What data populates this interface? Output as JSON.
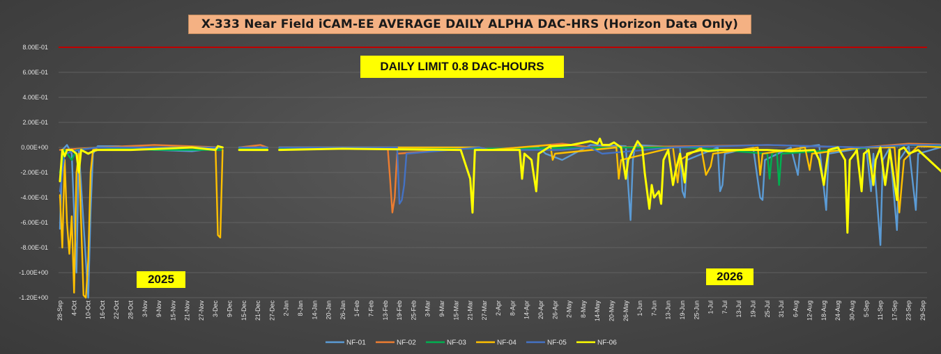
{
  "chart_data": {
    "type": "line",
    "title": "X-333 Near Field iCAM-EE AVERAGE DAILY ALPHA DAC-HRS (Horizon Data Only)",
    "xlabel": "",
    "ylabel": "",
    "ylim": [
      -1.2,
      0.8
    ],
    "yticks": [
      "8.00E-01",
      "6.00E-01",
      "4.00E-01",
      "2.00E-01",
      "0.00E+00",
      "-2.00E-01",
      "-4.00E-01",
      "-6.00E-01",
      "-8.00E-01",
      "-1.00E+00",
      "-1.20E+00"
    ],
    "ytick_values": [
      0.8,
      0.6,
      0.4,
      0.2,
      0.0,
      -0.2,
      -0.4,
      -0.6,
      -0.8,
      -1.0,
      -1.2
    ],
    "x_tick_labels": [
      "28-Sep",
      "4-Oct",
      "10-Oct",
      "16-Oct",
      "22-Oct",
      "28-Oct",
      "3-Nov",
      "9-Nov",
      "15-Nov",
      "21-Nov",
      "27-Nov",
      "3-Dec",
      "9-Dec",
      "15-Dec",
      "21-Dec",
      "27-Dec",
      "2-Jan",
      "8-Jan",
      "14-Jan",
      "20-Jan",
      "26-Jan",
      "1-Feb",
      "7-Feb",
      "13-Feb",
      "19-Feb",
      "25-Feb",
      "3-Mar",
      "9-Mar",
      "15-Mar",
      "21-Mar",
      "27-Mar",
      "2-Apr",
      "8-Apr",
      "14-Apr",
      "20-Apr",
      "26-Apr",
      "2-May",
      "8-May",
      "14-May",
      "20-May",
      "26-May",
      "1-Jun",
      "7-Jun",
      "13-Jun",
      "19-Jun",
      "25-Jun",
      "1-Jul",
      "7-Jul",
      "13-Jul",
      "19-Jul",
      "25-Jul",
      "31-Jul",
      "6-Aug",
      "12-Aug",
      "18-Aug",
      "24-Aug",
      "30-Aug",
      "5-Sep",
      "11-Sep",
      "17-Sep",
      "23-Sep",
      "29-Sep"
    ],
    "limit_line": {
      "value": 0.8,
      "color": "#c00000"
    },
    "legend_position": "bottom",
    "grid": "horizontal",
    "annotations": {
      "limit_note": "DAILY LIMIT 0.8 DAC-HOURS",
      "year_left": "2025",
      "year_right": "2026"
    },
    "series": [
      {
        "name": "NF-01",
        "color": "#5b9bd5",
        "points": [
          [
            0,
            -0.65
          ],
          [
            1,
            -0.02
          ],
          [
            3,
            0.02
          ],
          [
            5,
            -0.05
          ],
          [
            7,
            -1.0
          ],
          [
            8,
            -0.02
          ],
          [
            12,
            -1.2
          ],
          [
            13,
            -0.5
          ],
          [
            14,
            -0.05
          ],
          [
            16,
            0.01
          ],
          [
            25,
            0.01
          ],
          [
            40,
            -0.02
          ],
          [
            56,
            -0.03
          ],
          [
            69,
            0.0
          ],
          [
            70,
            null
          ],
          [
            76,
            0.0
          ],
          [
            88,
            0.0
          ],
          [
            89,
            null
          ],
          [
            93,
            0.0
          ],
          [
            130,
            0.0
          ],
          [
            162,
            0.0
          ],
          [
            178,
            0.0
          ],
          [
            182,
            -0.02
          ],
          [
            203,
            0.0
          ],
          [
            206,
            -0.05
          ],
          [
            213,
            -0.1
          ],
          [
            225,
            0.02
          ],
          [
            240,
            0.01
          ],
          [
            241,
            -0.3
          ],
          [
            242,
            -0.58
          ],
          [
            243,
            -0.1
          ],
          [
            244,
            0.02
          ],
          [
            263,
            0.0
          ],
          [
            264,
            -0.35
          ],
          [
            265,
            -0.4
          ],
          [
            266,
            -0.1
          ],
          [
            279,
            0.0
          ],
          [
            280,
            -0.35
          ],
          [
            281,
            -0.3
          ],
          [
            282,
            -0.05
          ],
          [
            294,
            0.0
          ],
          [
            297,
            -0.4
          ],
          [
            298,
            -0.42
          ],
          [
            299,
            -0.1
          ],
          [
            310,
            0.0
          ],
          [
            313,
            -0.22
          ],
          [
            314,
            0.0
          ],
          [
            322,
            0.02
          ],
          [
            325,
            -0.5
          ],
          [
            326,
            -0.05
          ],
          [
            342,
            0.0
          ],
          [
            344,
            -0.35
          ],
          [
            345,
            -0.05
          ],
          [
            348,
            -0.78
          ],
          [
            349,
            -0.1
          ],
          [
            352,
            0.0
          ],
          [
            355,
            -0.66
          ],
          [
            356,
            -0.1
          ],
          [
            360,
            0.01
          ],
          [
            363,
            -0.5
          ],
          [
            364,
            -0.05
          ],
          [
            377,
            0.02
          ],
          [
            378,
            -0.1
          ],
          [
            379,
            -0.98
          ],
          [
            380,
            -0.05
          ],
          [
            383,
            0.0
          ],
          [
            385,
            0.02
          ]
        ]
      },
      {
        "name": "NF-02",
        "color": "#ed7d31",
        "points": [
          [
            0,
            -0.02
          ],
          [
            16,
            0.0
          ],
          [
            40,
            0.02
          ],
          [
            69,
            0.0
          ],
          [
            70,
            null
          ],
          [
            76,
            0.0
          ],
          [
            85,
            0.02
          ],
          [
            88,
            0.0
          ],
          [
            89,
            null
          ],
          [
            93,
            0.0
          ],
          [
            139,
            0.0
          ],
          [
            140,
            -0.25
          ],
          [
            141,
            -0.52
          ],
          [
            142,
            -0.4
          ],
          [
            143,
            -0.05
          ],
          [
            178,
            0.0
          ],
          [
            182,
            -0.02
          ],
          [
            213,
            0.03
          ],
          [
            225,
            0.0
          ],
          [
            270,
            0.01
          ],
          [
            300,
            0.02
          ],
          [
            340,
            0.0
          ],
          [
            360,
            0.03
          ],
          [
            383,
            0.02
          ],
          [
            385,
            0.0
          ]
        ]
      },
      {
        "name": "NF-03",
        "color": "#00b050",
        "points": [
          [
            0,
            -0.2
          ],
          [
            2,
            -0.02
          ],
          [
            5,
            -0.1
          ],
          [
            7,
            -0.02
          ],
          [
            16,
            0.0
          ],
          [
            40,
            -0.02
          ],
          [
            69,
            -0.02
          ],
          [
            70,
            null
          ],
          [
            76,
            -0.01
          ],
          [
            88,
            -0.01
          ],
          [
            89,
            null
          ],
          [
            93,
            -0.01
          ],
          [
            178,
            -0.01
          ],
          [
            240,
            0.0
          ],
          [
            266,
            0.0
          ],
          [
            300,
            -0.05
          ],
          [
            301,
            -0.25
          ],
          [
            302,
            -0.05
          ],
          [
            304,
            -0.02
          ],
          [
            305,
            -0.3
          ],
          [
            306,
            -0.05
          ],
          [
            330,
            -0.02
          ],
          [
            360,
            0.02
          ],
          [
            383,
            0.0
          ],
          [
            385,
            0.01
          ]
        ]
      },
      {
        "name": "NF-04",
        "color": "#ffc000",
        "points": [
          [
            0,
            -0.38
          ],
          [
            1,
            -0.8
          ],
          [
            2,
            -0.1
          ],
          [
            3,
            -0.6
          ],
          [
            4,
            -0.85
          ],
          [
            5,
            -0.55
          ],
          [
            6,
            -1.16
          ],
          [
            7,
            -0.2
          ],
          [
            8,
            -0.05
          ],
          [
            9,
            -0.6
          ],
          [
            10,
            -1.18
          ],
          [
            11,
            -1.2
          ],
          [
            12,
            -0.9
          ],
          [
            13,
            -0.2
          ],
          [
            14,
            -0.02
          ],
          [
            16,
            0.0
          ],
          [
            30,
            0.0
          ],
          [
            56,
            0.0
          ],
          [
            66,
            0.0
          ],
          [
            67,
            -0.7
          ],
          [
            68,
            -0.72
          ],
          [
            69,
            -0.02
          ],
          [
            70,
            null
          ],
          [
            76,
            0.0
          ],
          [
            88,
            0.0
          ],
          [
            89,
            null
          ],
          [
            93,
            0.0
          ],
          [
            178,
            0.0
          ],
          [
            182,
            -0.02
          ],
          [
            208,
            0.02
          ],
          [
            209,
            -0.1
          ],
          [
            210,
            -0.05
          ],
          [
            236,
            0.0
          ],
          [
            237,
            -0.25
          ],
          [
            238,
            -0.1
          ],
          [
            260,
            0.0
          ],
          [
            262,
            -0.28
          ],
          [
            263,
            -0.1
          ],
          [
            272,
            0.0
          ],
          [
            274,
            -0.22
          ],
          [
            276,
            -0.15
          ],
          [
            277,
            -0.05
          ],
          [
            296,
            0.0
          ],
          [
            297,
            -0.22
          ],
          [
            298,
            -0.05
          ],
          [
            316,
            0.0
          ],
          [
            318,
            -0.18
          ],
          [
            319,
            -0.05
          ],
          [
            340,
            0.0
          ],
          [
            354,
            0.0
          ],
          [
            356,
            -0.52
          ],
          [
            357,
            -0.3
          ],
          [
            358,
            -0.1
          ],
          [
            364,
            0.01
          ],
          [
            376,
            0.0
          ],
          [
            378,
            -0.25
          ],
          [
            380,
            -0.48
          ],
          [
            383,
            -0.3
          ],
          [
            385,
            -0.52
          ]
        ]
      },
      {
        "name": "NF-05",
        "color": "#4472c4",
        "points": [
          [
            0,
            -0.35
          ],
          [
            2,
            -0.05
          ],
          [
            8,
            -0.02
          ],
          [
            16,
            0.0
          ],
          [
            40,
            0.0
          ],
          [
            69,
            0.0
          ],
          [
            70,
            null
          ],
          [
            76,
            0.0
          ],
          [
            88,
            0.0
          ],
          [
            89,
            null
          ],
          [
            93,
            0.0
          ],
          [
            143,
            0.0
          ],
          [
            144,
            -0.45
          ],
          [
            145,
            -0.42
          ],
          [
            146,
            -0.3
          ],
          [
            147,
            -0.05
          ],
          [
            178,
            0.0
          ],
          [
            182,
            -0.02
          ],
          [
            213,
            -0.02
          ],
          [
            225,
            0.0
          ],
          [
            230,
            -0.05
          ],
          [
            260,
            0.0
          ],
          [
            300,
            0.02
          ],
          [
            340,
            0.0
          ],
          [
            360,
            0.02
          ],
          [
            378,
            0.02
          ],
          [
            385,
            0.02
          ]
        ]
      },
      {
        "name": "NF-06",
        "color": "#ffff00",
        "points": [
          [
            0,
            -0.27
          ],
          [
            1,
            -0.02
          ],
          [
            2,
            -0.07
          ],
          [
            3,
            -0.02
          ],
          [
            5,
            -0.02
          ],
          [
            7,
            -0.05
          ],
          [
            8,
            -0.2
          ],
          [
            9,
            -0.02
          ],
          [
            12,
            -0.05
          ],
          [
            14,
            -0.03
          ],
          [
            16,
            -0.02
          ],
          [
            30,
            -0.02
          ],
          [
            56,
            0.0
          ],
          [
            66,
            -0.02
          ],
          [
            67,
            0.01
          ],
          [
            69,
            0.0
          ],
          [
            70,
            null
          ],
          [
            76,
            -0.02
          ],
          [
            88,
            -0.02
          ],
          [
            89,
            null
          ],
          [
            93,
            -0.02
          ],
          [
            120,
            -0.01
          ],
          [
            170,
            -0.02
          ],
          [
            174,
            -0.25
          ],
          [
            175,
            -0.52
          ],
          [
            176,
            -0.02
          ],
          [
            195,
            -0.02
          ],
          [
            196,
            -0.25
          ],
          [
            197,
            -0.05
          ],
          [
            200,
            -0.1
          ],
          [
            202,
            -0.35
          ],
          [
            203,
            -0.05
          ],
          [
            208,
            0.01
          ],
          [
            217,
            0.02
          ],
          [
            225,
            0.05
          ],
          [
            228,
            0.03
          ],
          [
            229,
            0.07
          ],
          [
            230,
            0.02
          ],
          [
            233,
            0.02
          ],
          [
            235,
            0.04
          ],
          [
            238,
            0.0
          ],
          [
            240,
            -0.25
          ],
          [
            241,
            -0.1
          ],
          [
            245,
            0.05
          ],
          [
            247,
            0.0
          ],
          [
            248,
            -0.2
          ],
          [
            250,
            -0.49
          ],
          [
            251,
            -0.3
          ],
          [
            252,
            -0.4
          ],
          [
            254,
            -0.35
          ],
          [
            255,
            -0.45
          ],
          [
            256,
            -0.1
          ],
          [
            258,
            -0.02
          ],
          [
            260,
            -0.3
          ],
          [
            261,
            -0.2
          ],
          [
            263,
            -0.05
          ],
          [
            265,
            -0.28
          ],
          [
            266,
            -0.05
          ],
          [
            272,
            -0.02
          ],
          [
            275,
            -0.03
          ],
          [
            280,
            -0.02
          ],
          [
            290,
            -0.02
          ],
          [
            300,
            -0.02
          ],
          [
            310,
            -0.03
          ],
          [
            320,
            -0.02
          ],
          [
            322,
            -0.1
          ],
          [
            323,
            -0.2
          ],
          [
            324,
            -0.3
          ],
          [
            325,
            -0.15
          ],
          [
            326,
            -0.02
          ],
          [
            330,
            0.0
          ],
          [
            333,
            -0.1
          ],
          [
            334,
            -0.68
          ],
          [
            335,
            -0.1
          ],
          [
            337,
            -0.05
          ],
          [
            338,
            -0.02
          ],
          [
            340,
            -0.35
          ],
          [
            341,
            -0.05
          ],
          [
            343,
            -0.02
          ],
          [
            345,
            -0.3
          ],
          [
            346,
            -0.1
          ],
          [
            348,
            0.0
          ],
          [
            350,
            -0.3
          ],
          [
            352,
            -0.02
          ],
          [
            355,
            -0.42
          ],
          [
            356,
            -0.02
          ],
          [
            358,
            0.0
          ],
          [
            360,
            -0.05
          ],
          [
            364,
            -0.02
          ],
          [
            380,
            -0.3
          ],
          [
            381,
            -0.02
          ],
          [
            383,
            -0.1
          ],
          [
            385,
            -0.02
          ]
        ]
      }
    ]
  }
}
